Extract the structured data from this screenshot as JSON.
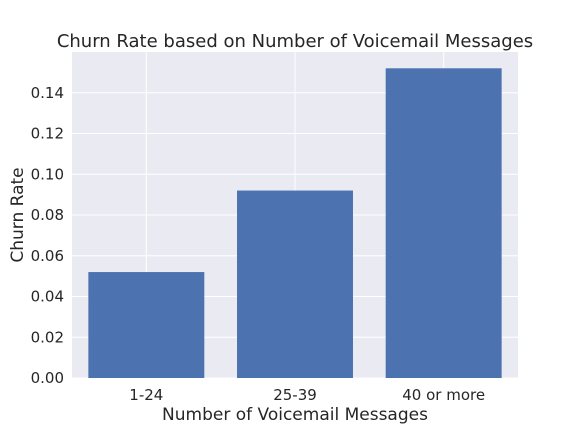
{
  "chart_data": {
    "type": "bar",
    "title": "Churn Rate based on Number of Voicemail Messages",
    "xlabel": "Number of Voicemail Messages",
    "ylabel": "Churn Rate",
    "categories": [
      "1-24",
      "25-39",
      "40 or more"
    ],
    "values": [
      0.052,
      0.092,
      0.152
    ],
    "ylim": [
      0,
      0.16
    ],
    "yticks": [
      0.0,
      0.02,
      0.04,
      0.06,
      0.08,
      0.1,
      0.12,
      0.14
    ],
    "ytick_labels": [
      "0.00",
      "0.02",
      "0.04",
      "0.06",
      "0.08",
      "0.10",
      "0.12",
      "0.14"
    ],
    "grid": true,
    "colors": {
      "bar": "#4c72b0",
      "background": "#eaeaf2",
      "grid": "#ffffff",
      "text": "#262626"
    }
  }
}
